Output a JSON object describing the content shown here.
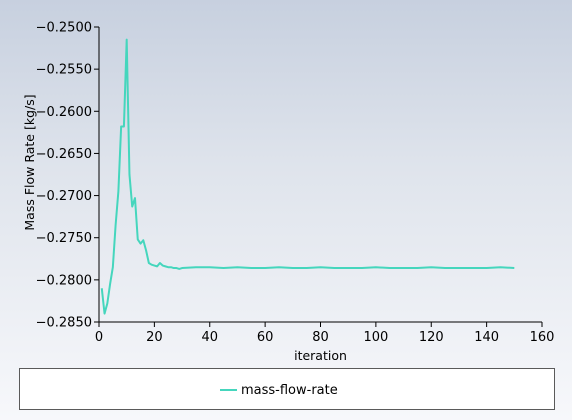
{
  "chart_data": {
    "type": "line",
    "title": "",
    "xlabel": "iteration",
    "ylabel": "Mass Flow Rate [kg/s]",
    "xlim": [
      0,
      160
    ],
    "ylim": [
      -0.285,
      -0.25
    ],
    "x_ticks": [
      0,
      20,
      40,
      60,
      80,
      100,
      120,
      140,
      160
    ],
    "x_tick_labels": [
      "0",
      "20",
      "40",
      "60",
      "80",
      "100",
      "120",
      "140",
      "160"
    ],
    "y_ticks": [
      -0.25,
      -0.255,
      -0.26,
      -0.265,
      -0.27,
      -0.275,
      -0.28,
      -0.285
    ],
    "y_tick_labels": [
      "−0.2500",
      "−0.2550",
      "−0.2600",
      "−0.2650",
      "−0.2700",
      "−0.2750",
      "−0.2800",
      "−0.2850"
    ],
    "grid": false,
    "legend_position": "bottom",
    "series": [
      {
        "name": "mass-flow-rate",
        "color": "#45d6bd",
        "x": [
          1,
          2,
          3,
          4,
          5,
          6,
          7,
          8,
          9,
          10,
          11,
          12,
          13,
          14,
          15,
          16,
          17,
          18,
          19,
          20,
          21,
          22,
          23,
          24,
          25,
          26,
          27,
          28,
          29,
          30,
          35,
          40,
          45,
          50,
          55,
          60,
          65,
          70,
          75,
          80,
          85,
          90,
          95,
          100,
          105,
          110,
          115,
          120,
          125,
          130,
          135,
          140,
          145,
          150
        ],
        "y": [
          -0.281,
          -0.284,
          -0.2828,
          -0.2805,
          -0.2785,
          -0.2735,
          -0.2695,
          -0.2618,
          -0.2618,
          -0.2515,
          -0.2675,
          -0.2713,
          -0.2703,
          -0.2752,
          -0.2757,
          -0.2753,
          -0.2765,
          -0.278,
          -0.2782,
          -0.2783,
          -0.2784,
          -0.278,
          -0.2783,
          -0.2784,
          -0.2785,
          -0.2785,
          -0.2786,
          -0.2786,
          -0.2787,
          -0.2786,
          -0.2785,
          -0.2785,
          -0.2786,
          -0.2785,
          -0.2786,
          -0.2786,
          -0.2785,
          -0.2786,
          -0.2786,
          -0.2785,
          -0.2786,
          -0.2786,
          -0.2786,
          -0.2785,
          -0.2786,
          -0.2786,
          -0.2786,
          -0.2785,
          -0.2786,
          -0.2786,
          -0.2786,
          -0.2786,
          -0.2785,
          -0.2786
        ]
      }
    ]
  }
}
